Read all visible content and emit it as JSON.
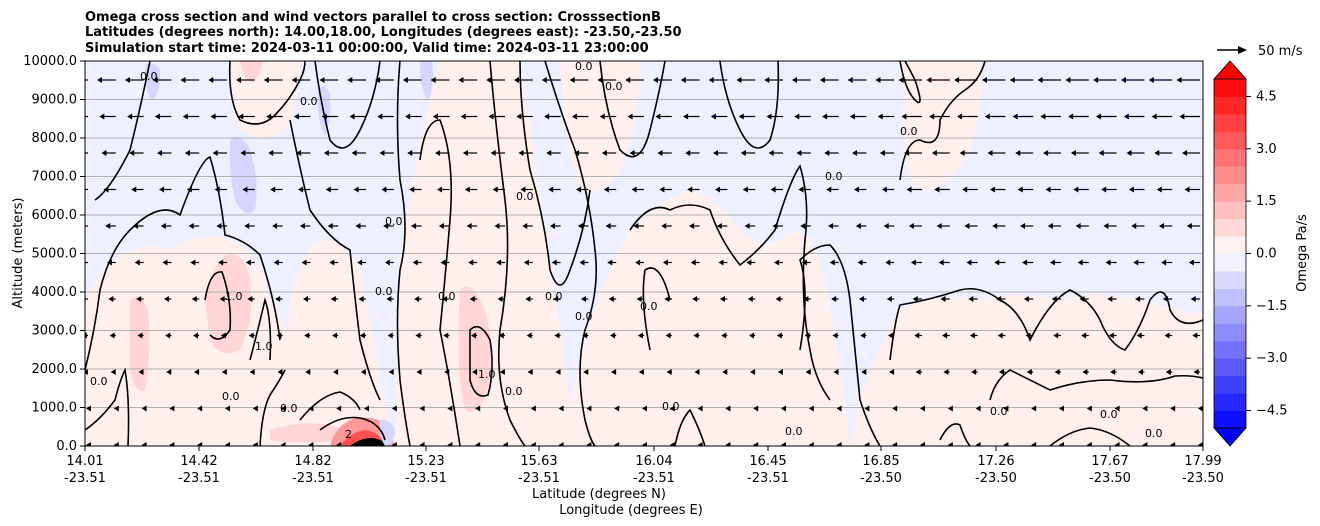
{
  "chart_data": {
    "type": "contour",
    "title_lines": [
      "Omega cross section and wind vectors parallel to cross section: CrosssectionB",
      "Latitudes (degrees north): 14.00,18.00, Longitudes (degrees east): -23.50,-23.50",
      "Simulation start time: 2024-03-11 00:00:00, Valid time: 2024-03-11 23:00:00"
    ],
    "ylabel": "Altitude (meters)",
    "xlabel_lines": [
      "Latitude (degrees N)",
      "Longitude (degrees E)"
    ],
    "ylim": [
      0,
      10000
    ],
    "yticks": [
      "0.0",
      "1000.0",
      "2000.0",
      "3000.0",
      "4000.0",
      "5000.0",
      "6000.0",
      "7000.0",
      "8000.0",
      "9000.0",
      "10000.0"
    ],
    "xticks": [
      {
        "lat": "14.01",
        "lon": "-23.51"
      },
      {
        "lat": "14.42",
        "lon": "-23.51"
      },
      {
        "lat": "14.82",
        "lon": "-23.51"
      },
      {
        "lat": "15.23",
        "lon": "-23.51"
      },
      {
        "lat": "15.63",
        "lon": "-23.51"
      },
      {
        "lat": "16.04",
        "lon": "-23.51"
      },
      {
        "lat": "16.45",
        "lon": "-23.51"
      },
      {
        "lat": "16.85",
        "lon": "-23.50"
      },
      {
        "lat": "17.26",
        "lon": "-23.50"
      },
      {
        "lat": "17.67",
        "lon": "-23.50"
      },
      {
        "lat": "17.99",
        "lon": "-23.50"
      }
    ],
    "grid": "horizontal",
    "colorbar": {
      "label": "Omega Pa/s",
      "range": [
        -5,
        5
      ],
      "ticks": [
        "−4.5",
        "−3.0",
        "−1.5",
        "0.0",
        "1.5",
        "3.0",
        "4.5"
      ],
      "extend": "both",
      "colormap": "bwr",
      "low_color": "#0000ff",
      "high_color": "#ff0000"
    },
    "vector_key": {
      "label": "50 m/s",
      "speed": 50
    },
    "contour_labels": [
      "0.0",
      "1.0",
      "1.0",
      "1.0",
      "2"
    ]
  }
}
